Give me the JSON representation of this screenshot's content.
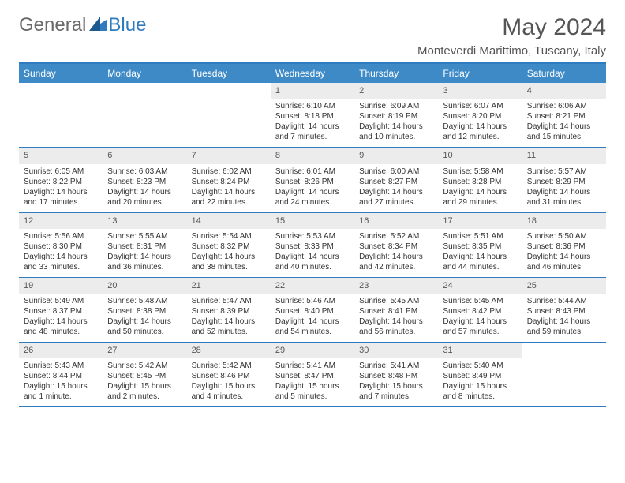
{
  "logo": {
    "part1": "General",
    "part2": "Blue"
  },
  "title": "May 2024",
  "location": "Monteverdi Marittimo, Tuscany, Italy",
  "colors": {
    "header_bar": "#3d8ac7",
    "accent_line": "#2f7bbf",
    "daynum_bg": "#ececec",
    "text": "#333333",
    "muted": "#555555"
  },
  "day_labels": [
    "Sunday",
    "Monday",
    "Tuesday",
    "Wednesday",
    "Thursday",
    "Friday",
    "Saturday"
  ],
  "weeks": [
    [
      null,
      null,
      null,
      {
        "n": "1",
        "sr": "6:10 AM",
        "ss": "8:18 PM",
        "dl": "14 hours and 7 minutes."
      },
      {
        "n": "2",
        "sr": "6:09 AM",
        "ss": "8:19 PM",
        "dl": "14 hours and 10 minutes."
      },
      {
        "n": "3",
        "sr": "6:07 AM",
        "ss": "8:20 PM",
        "dl": "14 hours and 12 minutes."
      },
      {
        "n": "4",
        "sr": "6:06 AM",
        "ss": "8:21 PM",
        "dl": "14 hours and 15 minutes."
      }
    ],
    [
      {
        "n": "5",
        "sr": "6:05 AM",
        "ss": "8:22 PM",
        "dl": "14 hours and 17 minutes."
      },
      {
        "n": "6",
        "sr": "6:03 AM",
        "ss": "8:23 PM",
        "dl": "14 hours and 20 minutes."
      },
      {
        "n": "7",
        "sr": "6:02 AM",
        "ss": "8:24 PM",
        "dl": "14 hours and 22 minutes."
      },
      {
        "n": "8",
        "sr": "6:01 AM",
        "ss": "8:26 PM",
        "dl": "14 hours and 24 minutes."
      },
      {
        "n": "9",
        "sr": "6:00 AM",
        "ss": "8:27 PM",
        "dl": "14 hours and 27 minutes."
      },
      {
        "n": "10",
        "sr": "5:58 AM",
        "ss": "8:28 PM",
        "dl": "14 hours and 29 minutes."
      },
      {
        "n": "11",
        "sr": "5:57 AM",
        "ss": "8:29 PM",
        "dl": "14 hours and 31 minutes."
      }
    ],
    [
      {
        "n": "12",
        "sr": "5:56 AM",
        "ss": "8:30 PM",
        "dl": "14 hours and 33 minutes."
      },
      {
        "n": "13",
        "sr": "5:55 AM",
        "ss": "8:31 PM",
        "dl": "14 hours and 36 minutes."
      },
      {
        "n": "14",
        "sr": "5:54 AM",
        "ss": "8:32 PM",
        "dl": "14 hours and 38 minutes."
      },
      {
        "n": "15",
        "sr": "5:53 AM",
        "ss": "8:33 PM",
        "dl": "14 hours and 40 minutes."
      },
      {
        "n": "16",
        "sr": "5:52 AM",
        "ss": "8:34 PM",
        "dl": "14 hours and 42 minutes."
      },
      {
        "n": "17",
        "sr": "5:51 AM",
        "ss": "8:35 PM",
        "dl": "14 hours and 44 minutes."
      },
      {
        "n": "18",
        "sr": "5:50 AM",
        "ss": "8:36 PM",
        "dl": "14 hours and 46 minutes."
      }
    ],
    [
      {
        "n": "19",
        "sr": "5:49 AM",
        "ss": "8:37 PM",
        "dl": "14 hours and 48 minutes."
      },
      {
        "n": "20",
        "sr": "5:48 AM",
        "ss": "8:38 PM",
        "dl": "14 hours and 50 minutes."
      },
      {
        "n": "21",
        "sr": "5:47 AM",
        "ss": "8:39 PM",
        "dl": "14 hours and 52 minutes."
      },
      {
        "n": "22",
        "sr": "5:46 AM",
        "ss": "8:40 PM",
        "dl": "14 hours and 54 minutes."
      },
      {
        "n": "23",
        "sr": "5:45 AM",
        "ss": "8:41 PM",
        "dl": "14 hours and 56 minutes."
      },
      {
        "n": "24",
        "sr": "5:45 AM",
        "ss": "8:42 PM",
        "dl": "14 hours and 57 minutes."
      },
      {
        "n": "25",
        "sr": "5:44 AM",
        "ss": "8:43 PM",
        "dl": "14 hours and 59 minutes."
      }
    ],
    [
      {
        "n": "26",
        "sr": "5:43 AM",
        "ss": "8:44 PM",
        "dl": "15 hours and 1 minute."
      },
      {
        "n": "27",
        "sr": "5:42 AM",
        "ss": "8:45 PM",
        "dl": "15 hours and 2 minutes."
      },
      {
        "n": "28",
        "sr": "5:42 AM",
        "ss": "8:46 PM",
        "dl": "15 hours and 4 minutes."
      },
      {
        "n": "29",
        "sr": "5:41 AM",
        "ss": "8:47 PM",
        "dl": "15 hours and 5 minutes."
      },
      {
        "n": "30",
        "sr": "5:41 AM",
        "ss": "8:48 PM",
        "dl": "15 hours and 7 minutes."
      },
      {
        "n": "31",
        "sr": "5:40 AM",
        "ss": "8:49 PM",
        "dl": "15 hours and 8 minutes."
      },
      null
    ]
  ],
  "labels": {
    "sunrise": "Sunrise:",
    "sunset": "Sunset:",
    "daylight": "Daylight:"
  }
}
